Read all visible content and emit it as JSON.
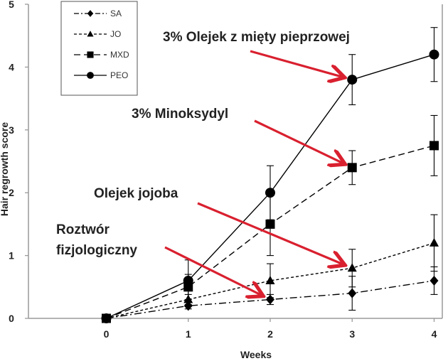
{
  "chart_data": {
    "type": "line",
    "xlabel": "Weeks",
    "ylabel": "Hair regrowth score",
    "xlim": [
      -0.95,
      4.1
    ],
    "ylim": [
      0,
      5
    ],
    "x_ticks": [
      "0",
      "1",
      "2",
      "3",
      "4"
    ],
    "y_ticks": [
      "0",
      "1",
      "2",
      "3",
      "4",
      "5"
    ],
    "legend_position": "top-left",
    "x": [
      0,
      1,
      2,
      3,
      4
    ],
    "series": [
      {
        "name": "SA",
        "line_style": "dash-dot",
        "marker": "diamond",
        "values": [
          0,
          0.2,
          0.3,
          0.4,
          0.6
        ],
        "error": [
          0,
          0.05,
          0.08,
          0.27,
          0.22
        ]
      },
      {
        "name": "JO",
        "line_style": "dotted",
        "marker": "triangle",
        "values": [
          0,
          0.3,
          0.6,
          0.8,
          1.2
        ],
        "error": [
          0,
          0.08,
          0.27,
          0.3,
          0.45
        ]
      },
      {
        "name": "MXD",
        "line_style": "dashed",
        "marker": "square",
        "values": [
          0,
          0.5,
          1.5,
          2.4,
          2.75
        ],
        "error": [
          0,
          0.2,
          0.5,
          0.27,
          0.48
        ]
      },
      {
        "name": "PEO",
        "line_style": "solid",
        "marker": "circle",
        "values": [
          0,
          0.6,
          2.0,
          3.8,
          4.2
        ],
        "error": [
          0,
          0.33,
          0.43,
          0.4,
          0.43
        ]
      }
    ],
    "annotations": [
      {
        "text": "3% Olejek z mięty pieprzowej",
        "arrow_to_series": "PEO",
        "arrow_to_x": 3
      },
      {
        "text": "3% Minoksydyl",
        "arrow_to_series": "MXD",
        "arrow_to_x": 3
      },
      {
        "text": "Olejek jojoba",
        "arrow_to_series": "JO",
        "arrow_to_x": 3
      },
      {
        "text": "Roztwór",
        "arrow_to_series": "SA",
        "arrow_to_x": 2
      },
      {
        "text": "fizjologiczny"
      }
    ],
    "colors": {
      "line": "#000000",
      "axis": "#9a9a9a",
      "arrow": "#d9202f"
    }
  }
}
